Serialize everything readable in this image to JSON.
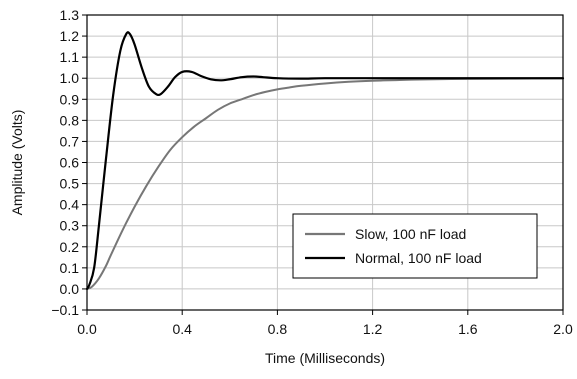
{
  "chart_data": {
    "type": "line",
    "title": "",
    "xlabel": "Time (Milliseconds)",
    "ylabel": "Amplitude (Volts)",
    "xlim": [
      0.0,
      2.0
    ],
    "ylim": [
      -0.1,
      1.3
    ],
    "x_ticks": [
      0.0,
      0.4,
      0.8,
      1.2,
      1.6,
      2.0
    ],
    "x_tick_labels": [
      "0.0",
      "0.4",
      "0.8",
      "1.2",
      "1.6",
      "2.0"
    ],
    "y_ticks": [
      -0.1,
      0.0,
      0.1,
      0.2,
      0.3,
      0.4,
      0.5,
      0.6,
      0.7,
      0.8,
      0.9,
      1.0,
      1.1,
      1.2,
      1.3
    ],
    "y_tick_labels": [
      "−0.1",
      "0.0",
      "0.1",
      "0.2",
      "0.3",
      "0.4",
      "0.5",
      "0.6",
      "0.7",
      "0.8",
      "0.9",
      "1.0",
      "1.1",
      "1.2",
      "1.3"
    ],
    "grid": true,
    "legend_position": "bottom-right",
    "series": [
      {
        "name": "Slow, 100 nF load",
        "color": "#777777",
        "x": [
          0.0,
          0.02,
          0.05,
          0.08,
          0.1,
          0.15,
          0.2,
          0.25,
          0.3,
          0.35,
          0.4,
          0.45,
          0.5,
          0.55,
          0.6,
          0.65,
          0.7,
          0.75,
          0.8,
          0.85,
          0.9,
          1.0,
          1.1,
          1.2,
          1.3,
          1.4,
          1.6,
          1.8,
          2.0
        ],
        "y": [
          0.0,
          0.01,
          0.05,
          0.11,
          0.16,
          0.28,
          0.39,
          0.49,
          0.58,
          0.66,
          0.72,
          0.77,
          0.81,
          0.85,
          0.88,
          0.9,
          0.92,
          0.935,
          0.947,
          0.956,
          0.964,
          0.975,
          0.983,
          0.988,
          0.991,
          0.994,
          0.997,
          0.998,
          0.999
        ]
      },
      {
        "name": "Normal, 100 nF load",
        "color": "#000000",
        "x": [
          0.0,
          0.01,
          0.03,
          0.05,
          0.08,
          0.11,
          0.14,
          0.165,
          0.18,
          0.2,
          0.23,
          0.26,
          0.29,
          0.31,
          0.34,
          0.37,
          0.4,
          0.44,
          0.48,
          0.52,
          0.56,
          0.6,
          0.65,
          0.7,
          0.74,
          0.8,
          0.9,
          1.0,
          1.2,
          1.6,
          2.0
        ],
        "y": [
          0.0,
          0.02,
          0.1,
          0.3,
          0.62,
          0.92,
          1.13,
          1.21,
          1.21,
          1.16,
          1.05,
          0.96,
          0.925,
          0.925,
          0.96,
          1.005,
          1.03,
          1.03,
          1.01,
          0.995,
          0.99,
          0.995,
          1.005,
          1.008,
          1.005,
          1.0,
          0.998,
          1.0,
          1.0,
          1.0,
          1.0
        ]
      }
    ]
  }
}
